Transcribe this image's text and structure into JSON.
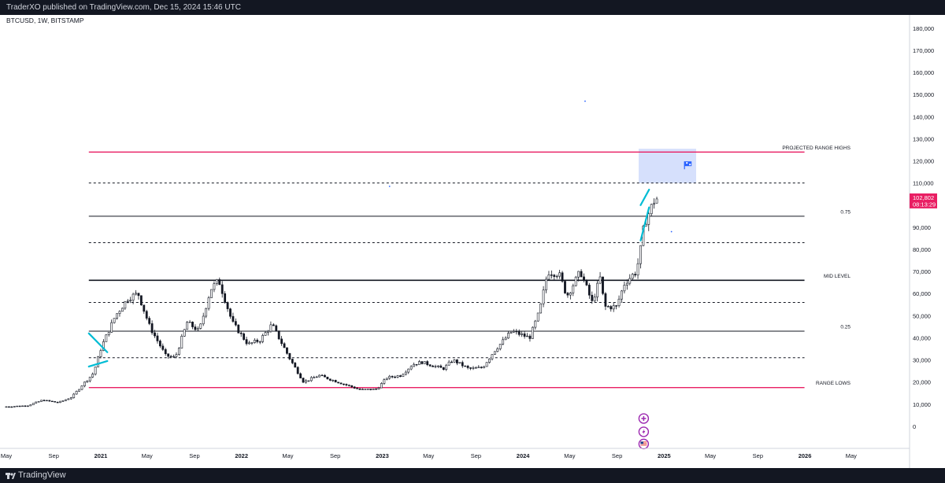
{
  "header": {
    "publisher": "TraderXO published on TradingView.com, Dec 15, 2024 15:46 UTC"
  },
  "footer": {
    "brand": "TradingView"
  },
  "chart_data": {
    "type": "candlestick",
    "symbol_label": "BTCUSD, 1W, BITSTAMP",
    "ylim": [
      -10000,
      186000
    ],
    "y_ticks": [
      0,
      10000,
      20000,
      30000,
      40000,
      50000,
      60000,
      70000,
      80000,
      90000,
      100000,
      110000,
      120000,
      130000,
      140000,
      150000,
      160000,
      170000,
      180000
    ],
    "y_tick_labels": [
      "0",
      "10,000",
      "20,000",
      "30,000",
      "40,000",
      "50,000",
      "60,000",
      "70,000",
      "80,000",
      "90,000",
      "100,000",
      "110,000",
      "120,000",
      "130,000",
      "140,000",
      "150,000",
      "160,000",
      "170,000",
      "180,000"
    ],
    "x_range": [
      "2020-05-01",
      "2026-06-01"
    ],
    "x_ticks": [
      {
        "date": "2020-05-01",
        "label": "May",
        "bold": false
      },
      {
        "date": "2020-09-01",
        "label": "Sep",
        "bold": false
      },
      {
        "date": "2021-01-01",
        "label": "2021",
        "bold": true
      },
      {
        "date": "2021-05-01",
        "label": "May",
        "bold": false
      },
      {
        "date": "2021-09-01",
        "label": "Sep",
        "bold": false
      },
      {
        "date": "2022-01-01",
        "label": "2022",
        "bold": true
      },
      {
        "date": "2022-05-01",
        "label": "May",
        "bold": false
      },
      {
        "date": "2022-09-01",
        "label": "Sep",
        "bold": false
      },
      {
        "date": "2023-01-01",
        "label": "2023",
        "bold": true
      },
      {
        "date": "2023-05-01",
        "label": "May",
        "bold": false
      },
      {
        "date": "2023-09-01",
        "label": "Sep",
        "bold": false
      },
      {
        "date": "2024-01-01",
        "label": "2024",
        "bold": true
      },
      {
        "date": "2024-05-01",
        "label": "May",
        "bold": false
      },
      {
        "date": "2024-09-01",
        "label": "Sep",
        "bold": false
      },
      {
        "date": "2025-01-01",
        "label": "2025",
        "bold": true
      },
      {
        "date": "2025-05-01",
        "label": "May",
        "bold": false
      },
      {
        "date": "2025-09-01",
        "label": "Sep",
        "bold": false
      },
      {
        "date": "2026-01-01",
        "label": "2026",
        "bold": true
      },
      {
        "date": "2026-05-01",
        "label": "May",
        "bold": false
      }
    ],
    "price_badge": {
      "value": 102802,
      "label": "102,802",
      "countdown": "08:13:29",
      "color": "#e91e63"
    },
    "levels": [
      {
        "price": 124000,
        "label": "PROJECTED RANGE HIGHS",
        "color": "#e91e63",
        "style": "solid",
        "start": "2020-12-01",
        "end": "2025-12-31"
      },
      {
        "price": 110000,
        "label": "",
        "color": "#131722",
        "style": "dashed",
        "start": "2020-12-01",
        "end": "2025-12-31"
      },
      {
        "price": 95000,
        "label": "0.75",
        "color": "#131722",
        "style": "solid",
        "start": "2020-12-01",
        "end": "2025-12-31"
      },
      {
        "price": 83000,
        "label": "",
        "color": "#131722",
        "style": "dashed",
        "start": "2020-12-01",
        "end": "2025-12-31"
      },
      {
        "price": 66000,
        "label": "MID LEVEL",
        "color": "#131722",
        "style": "solid-thick",
        "start": "2020-12-01",
        "end": "2025-12-31"
      },
      {
        "price": 56000,
        "label": "",
        "color": "#131722",
        "style": "dashed",
        "start": "2020-12-01",
        "end": "2025-12-31"
      },
      {
        "price": 43000,
        "label": "0.25",
        "color": "#131722",
        "style": "solid",
        "start": "2020-12-01",
        "end": "2025-12-31"
      },
      {
        "price": 31000,
        "label": "",
        "color": "#131722",
        "style": "dashed",
        "start": "2020-12-01",
        "end": "2025-12-31"
      },
      {
        "price": 17500,
        "label": "RANGE LOWS",
        "color": "#e91e63",
        "style": "solid",
        "start": "2020-12-01",
        "end": "2025-12-31"
      }
    ],
    "target_box": {
      "start": "2024-10-27",
      "end": "2025-03-25",
      "top": 125500,
      "bottom": 110000,
      "color": "#c8d6fb"
    },
    "trendlines": [
      {
        "from": [
          "2020-12-01",
          42000
        ],
        "to": [
          "2021-01-18",
          33500
        ],
        "color": "#00bcd4"
      },
      {
        "from": [
          "2020-12-01",
          27000
        ],
        "to": [
          "2021-01-18",
          29500
        ],
        "color": "#00bcd4"
      },
      {
        "from": [
          "2024-11-01",
          100000
        ],
        "to": [
          "2024-11-23",
          107000
        ],
        "color": "#00bcd4"
      },
      {
        "from": [
          "2024-11-01",
          84000
        ],
        "to": [
          "2024-11-23",
          99000
        ],
        "color": "#00bcd4"
      }
    ],
    "price_anchors": [
      [
        "2020-05-01",
        8800
      ],
      [
        "2020-07-01",
        9300
      ],
      [
        "2020-08-10",
        11800
      ],
      [
        "2020-09-20",
        10700
      ],
      [
        "2020-10-25",
        13200
      ],
      [
        "2020-11-20",
        18500
      ],
      [
        "2020-12-20",
        24000
      ],
      [
        "2021-01-10",
        36000
      ],
      [
        "2021-02-15",
        50000
      ],
      [
        "2021-03-20",
        58000
      ],
      [
        "2021-04-15",
        60000
      ],
      [
        "2021-05-15",
        45000
      ],
      [
        "2021-06-25",
        32000
      ],
      [
        "2021-07-20",
        31000
      ],
      [
        "2021-08-20",
        47000
      ],
      [
        "2021-09-20",
        43000
      ],
      [
        "2021-10-20",
        62000
      ],
      [
        "2021-11-10",
        66000
      ],
      [
        "2021-12-15",
        47000
      ],
      [
        "2022-01-25",
        37000
      ],
      [
        "2022-02-25",
        39000
      ],
      [
        "2022-03-28",
        46000
      ],
      [
        "2022-05-15",
        30000
      ],
      [
        "2022-06-18",
        20000
      ],
      [
        "2022-07-28",
        23000
      ],
      [
        "2022-09-15",
        20000
      ],
      [
        "2022-11-12",
        16500
      ],
      [
        "2022-12-25",
        16800
      ],
      [
        "2023-01-20",
        22000
      ],
      [
        "2023-02-25",
        23000
      ],
      [
        "2023-03-28",
        28000
      ],
      [
        "2023-04-20",
        29000
      ],
      [
        "2023-06-15",
        26000
      ],
      [
        "2023-07-10",
        30000
      ],
      [
        "2023-08-20",
        26000
      ],
      [
        "2023-09-25",
        26500
      ],
      [
        "2023-10-25",
        34000
      ],
      [
        "2023-12-10",
        43000
      ],
      [
        "2024-01-25",
        40000
      ],
      [
        "2024-02-20",
        52000
      ],
      [
        "2024-03-12",
        70000
      ],
      [
        "2024-04-10",
        69000
      ],
      [
        "2024-05-01",
        59000
      ],
      [
        "2024-06-05",
        70000
      ],
      [
        "2024-07-05",
        56000
      ],
      [
        "2024-07-28",
        68000
      ],
      [
        "2024-08-05",
        54000
      ],
      [
        "2024-09-06",
        54000
      ],
      [
        "2024-09-28",
        65000
      ],
      [
        "2024-10-28",
        70000
      ],
      [
        "2024-11-08",
        80000
      ],
      [
        "2024-11-18",
        92000
      ],
      [
        "2024-12-01",
        97000
      ],
      [
        "2024-12-15",
        102802
      ]
    ],
    "marker_icons": [
      {
        "name": "flag-icon",
        "date": "2025-03-03",
        "price": 118000,
        "color": "#2962ff"
      },
      {
        "name": "plus-icon",
        "date": "2024-11-09",
        "price": 3500,
        "color": "#9c27b0"
      },
      {
        "name": "lightning-icon",
        "date": "2024-11-09",
        "price": -2500,
        "color": "#9c27b0"
      },
      {
        "name": "us-flag-icon",
        "date": "2024-11-09",
        "price": -8000,
        "color": "#9c27b0"
      }
    ],
    "stray_dots": [
      {
        "date": "2024-06-10",
        "price": 147000
      },
      {
        "date": "2023-01-20",
        "price": 108500
      },
      {
        "date": "2025-01-20",
        "price": 88000
      }
    ]
  }
}
